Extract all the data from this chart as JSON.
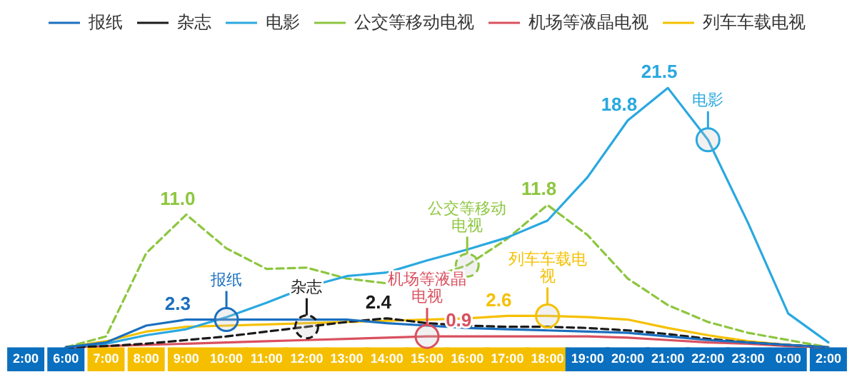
{
  "chart_data": {
    "type": "line",
    "categories": [
      "2:00",
      "6:00",
      "7:00",
      "8:00",
      "9:00",
      "10:00",
      "11:00",
      "12:00",
      "13:00",
      "14:00",
      "15:00",
      "16:00",
      "17:00",
      "18:00",
      "19:00",
      "20:00",
      "21:00",
      "22:00",
      "23:00",
      "0:00",
      "2:00"
    ],
    "series": [
      {
        "name": "报纸",
        "color": "#1a6fbf",
        "values": [
          null,
          0,
          0.4,
          1.8,
          2.3,
          2.3,
          2.3,
          2.3,
          2.3,
          2.0,
          1.8,
          1.6,
          1.5,
          1.4,
          1.3,
          1.2,
          0.9,
          0.6,
          0.4,
          0.2,
          0
        ],
        "value_labels": [
          null,
          null,
          null,
          null,
          "2.3",
          null,
          null,
          null,
          null,
          null,
          null,
          null,
          null,
          null,
          null,
          null,
          null,
          null,
          null,
          null,
          null
        ]
      },
      {
        "name": "杂志",
        "color": "#1a1a1a",
        "line_style": "dashed",
        "values": [
          null,
          0,
          0.1,
          0.3,
          0.6,
          0.9,
          1.3,
          1.7,
          2.1,
          2.4,
          2.0,
          1.8,
          1.7,
          1.7,
          1.6,
          1.4,
          1.1,
          0.7,
          0.4,
          0.2,
          0
        ],
        "value_labels": [
          null,
          null,
          null,
          null,
          null,
          null,
          null,
          null,
          null,
          "2.4",
          null,
          null,
          null,
          null,
          null,
          null,
          null,
          null,
          null,
          null,
          null
        ]
      },
      {
        "name": "电影",
        "color": "#29a8e0",
        "values": [
          null,
          0,
          0.3,
          1.0,
          1.5,
          2.5,
          3.7,
          5.0,
          5.9,
          6.2,
          7.2,
          8.1,
          9.1,
          10.5,
          14.1,
          18.8,
          21.5,
          17.2,
          10.3,
          2.8,
          0.4
        ],
        "value_labels": [
          null,
          null,
          null,
          null,
          null,
          null,
          null,
          null,
          null,
          null,
          null,
          null,
          null,
          null,
          null,
          "18.8",
          "21.5",
          null,
          null,
          null,
          null
        ]
      },
      {
        "name": "公交等移动电视",
        "color": "#8dc63f",
        "line_style": "dashed",
        "values": [
          null,
          0,
          0.9,
          7.8,
          11.0,
          8.2,
          6.5,
          6.6,
          5.7,
          5.3,
          5.7,
          6.8,
          9.0,
          11.8,
          9.3,
          5.7,
          3.5,
          2.1,
          1.2,
          0.6,
          0
        ],
        "value_labels": [
          null,
          null,
          null,
          null,
          "11.0",
          null,
          null,
          null,
          null,
          null,
          null,
          null,
          null,
          "11.8",
          null,
          null,
          null,
          null,
          null,
          null,
          null
        ]
      },
      {
        "name": "机场等液晶电视",
        "color": "#d9505e",
        "values": [
          null,
          0,
          0.1,
          0.2,
          0.3,
          0.4,
          0.5,
          0.6,
          0.7,
          0.8,
          0.9,
          0.9,
          0.9,
          0.9,
          0.9,
          0.8,
          0.6,
          0.4,
          0.3,
          0.1,
          0
        ],
        "value_labels": [
          null,
          null,
          null,
          null,
          null,
          null,
          null,
          null,
          null,
          null,
          null,
          "0.9",
          null,
          null,
          null,
          null,
          null,
          null,
          null,
          null,
          null
        ]
      },
      {
        "name": "列车车载电视",
        "color": "#f5c000",
        "values": [
          null,
          0,
          0.5,
          1.3,
          1.7,
          1.8,
          1.9,
          2.0,
          2.1,
          2.2,
          2.3,
          2.4,
          2.6,
          2.6,
          2.5,
          2.3,
          1.6,
          1.0,
          0.5,
          0.2,
          0
        ],
        "value_labels": [
          null,
          null,
          null,
          null,
          null,
          null,
          null,
          null,
          null,
          null,
          null,
          null,
          "2.6",
          null,
          null,
          null,
          null,
          null,
          null,
          null,
          null
        ]
      }
    ],
    "annotations": [
      {
        "text": "报纸",
        "x": "10:00",
        "y": 2.3
      },
      {
        "text": "杂志",
        "x": "12:00",
        "y": 1.7
      },
      {
        "text": "电影",
        "x": "22:00",
        "y": 17.2
      },
      {
        "text": "公交等移动电视",
        "x": "16:00",
        "y": 6.8
      },
      {
        "text": "机场等液晶电视",
        "x": "15:00",
        "y": 0.9
      },
      {
        "text": "列车车载电视",
        "x": "18:00",
        "y": 2.6
      }
    ],
    "tick_labels": "x",
    "grid": false,
    "legend": "top",
    "marker": "none",
    "line_style": "solid"
  }
}
